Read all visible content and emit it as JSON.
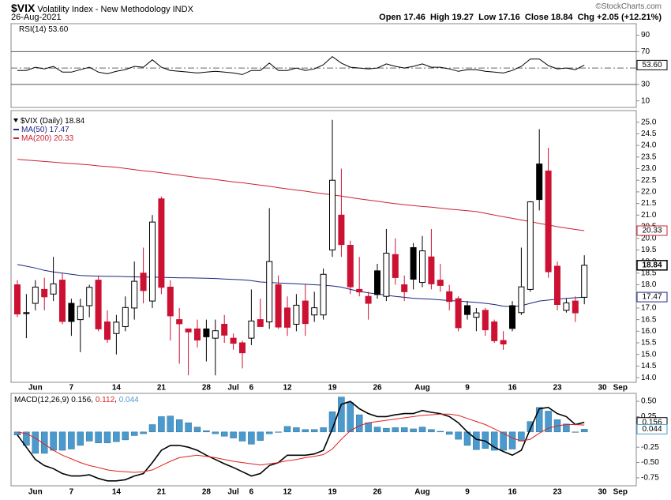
{
  "header": {
    "symbol": "$VIX",
    "name": "Volatility Index - New Methodology INDX",
    "date": "26-Aug-2021",
    "open_label": "Open",
    "high_label": "High",
    "low_label": "Low",
    "close_label": "Close",
    "change_label": "Chg",
    "change": "+2.05",
    "change_pct": "(+12.21%)",
    "credit": "©StockCharts.com"
  },
  "chart_data": [
    {
      "type": "line",
      "series": [
        {
          "name": "RSI(14)",
          "color": "#000000",
          "values": [
            47,
            47,
            51,
            49,
            52,
            45,
            45,
            48,
            51,
            45,
            43,
            46,
            48,
            52,
            51,
            60,
            51,
            47,
            46,
            45,
            44,
            45,
            46,
            45,
            44,
            42,
            47,
            47,
            56,
            47,
            47,
            50,
            47,
            49,
            54,
            64,
            56,
            51,
            50,
            49,
            50,
            55,
            52,
            50,
            52,
            55,
            51,
            51,
            49,
            46,
            48,
            48,
            46,
            45,
            44,
            47,
            52,
            61,
            61,
            53,
            49,
            50,
            48,
            53.6,
            null,
            null,
            null,
            null
          ]
        }
      ],
      "value_label": "53.60",
      "ylim": [
        2,
        104
      ],
      "yticks": [
        10,
        30,
        70,
        90
      ],
      "levels": [
        {
          "value": 70,
          "style": "solid"
        },
        {
          "value": 50,
          "style": "dashed"
        },
        {
          "value": 30,
          "style": "solid"
        }
      ]
    },
    {
      "type": "candlestick",
      "series_name": "$VIX (Daily)",
      "up_color": "#000000",
      "down_color": "#cc1133",
      "categories": [
        null,
        null,
        "Jun",
        null,
        null,
        null,
        "7",
        null,
        null,
        null,
        null,
        "14",
        null,
        null,
        null,
        null,
        "21",
        null,
        null,
        null,
        null,
        "28",
        null,
        null,
        "Jul",
        null,
        "6",
        null,
        null,
        null,
        "12",
        null,
        null,
        null,
        null,
        "19",
        null,
        null,
        null,
        null,
        "26",
        null,
        null,
        null,
        null,
        "Aug",
        null,
        null,
        null,
        null,
        "9",
        null,
        null,
        null,
        null,
        "16",
        null,
        null,
        null,
        null,
        "23",
        null,
        null,
        null,
        null,
        "30",
        null,
        "Sep"
      ],
      "open": [
        18.0,
        16.8,
        17.2,
        17.8,
        17.6,
        18.2,
        17.2,
        16.5,
        17.1,
        18.2,
        16.4,
        15.9,
        16.2,
        17.0,
        18.5,
        17.3,
        21.7,
        17.9,
        16.5,
        16.1,
        16.1,
        16.1,
        15.7,
        16.3,
        15.7,
        15.5,
        15.7,
        16.5,
        16.4,
        18.0,
        17.0,
        16.3,
        17.3,
        16.7,
        16.7,
        19.5,
        21.0,
        19.7,
        17.8,
        17.5,
        18.6,
        17.5,
        19.3,
        18.0,
        19.6,
        18.1,
        19.2,
        18.2,
        17.7,
        17.4,
        17.1,
        16.6,
        16.9,
        16.4,
        15.6,
        17.1,
        16.8,
        17.8,
        23.2,
        22.9,
        18.8,
        16.9,
        17.3,
        17.46,
        null,
        null,
        null,
        null
      ],
      "high": [
        18.2,
        17.6,
        18.2,
        18.3,
        19.2,
        18.5,
        17.4,
        17.4,
        18.0,
        18.4,
        16.9,
        16.7,
        17.5,
        19.0,
        19.6,
        21.0,
        21.8,
        18.2,
        17.0,
        16.1,
        16.5,
        16.5,
        16.5,
        16.7,
        15.9,
        15.6,
        17.8,
        17.4,
        21.3,
        18.4,
        17.5,
        17.6,
        18.0,
        17.7,
        18.7,
        25.1,
        23.0,
        19.9,
        19.2,
        17.7,
        18.9,
        20.4,
        20.0,
        18.4,
        19.8,
        20.1,
        20.4,
        18.9,
        18.0,
        17.5,
        17.3,
        17.0,
        17.0,
        16.5,
        16.0,
        17.3,
        19.6,
        21.6,
        24.7,
        23.9,
        19.0,
        17.4,
        17.5,
        19.27,
        null,
        null,
        null,
        null
      ],
      "low": [
        16.6,
        15.7,
        16.9,
        16.9,
        17.3,
        16.3,
        15.8,
        15.1,
        16.6,
        16.0,
        15.5,
        15.0,
        16.0,
        16.5,
        17.2,
        17.0,
        17.6,
        15.6,
        14.6,
        14.1,
        15.3,
        14.7,
        14.1,
        15.5,
        15.2,
        14.4,
        15.4,
        16.2,
        16.1,
        16.1,
        15.8,
        16.0,
        15.8,
        16.4,
        16.5,
        19.2,
        19.2,
        17.6,
        17.5,
        16.5,
        17.4,
        17.3,
        18.0,
        17.3,
        17.8,
        17.9,
        17.8,
        17.7,
        16.9,
        16.0,
        16.5,
        16.0,
        15.8,
        15.5,
        15.2,
        16.0,
        16.7,
        17.7,
        21.2,
        18.3,
        16.9,
        16.8,
        16.4,
        17.16,
        null,
        null,
        null,
        null
      ],
      "close": [
        16.74,
        16.76,
        17.9,
        17.48,
        18.04,
        16.42,
        16.42,
        17.07,
        17.89,
        16.1,
        15.65,
        16.39,
        17.02,
        18.15,
        17.75,
        20.7,
        17.89,
        16.66,
        16.32,
        15.97,
        15.62,
        15.76,
        16.02,
        15.83,
        15.48,
        15.07,
        16.44,
        16.2,
        19.0,
        16.18,
        16.17,
        17.12,
        16.33,
        17.01,
        18.45,
        22.5,
        19.73,
        17.91,
        17.69,
        17.2,
        17.58,
        19.36,
        18.31,
        17.7,
        18.24,
        19.46,
        18.04,
        17.97,
        17.28,
        16.15,
        16.72,
        16.79,
        16.06,
        15.59,
        15.45,
        16.12,
        17.91,
        21.57,
        21.67,
        18.56,
        17.15,
        17.22,
        16.79,
        18.84,
        null,
        null,
        null,
        null
      ],
      "overlays": [
        {
          "name": "MA(50)",
          "color": "#1c2680",
          "values": [
            18.87,
            18.8,
            18.72,
            18.62,
            18.55,
            18.5,
            18.45,
            18.4,
            18.38,
            18.37,
            18.36,
            18.36,
            18.35,
            18.34,
            18.33,
            18.33,
            18.32,
            18.31,
            18.3,
            18.3,
            18.29,
            18.28,
            18.27,
            18.25,
            18.23,
            18.21,
            18.18,
            18.12,
            18.1,
            18.08,
            18.06,
            18.04,
            18.02,
            18.0,
            17.98,
            17.95,
            17.9,
            17.8,
            17.72,
            17.65,
            17.6,
            17.55,
            17.5,
            17.46,
            17.42,
            17.4,
            17.38,
            17.35,
            17.32,
            17.3,
            17.27,
            17.24,
            17.2,
            17.15,
            17.08,
            17.06,
            17.1,
            17.2,
            17.3,
            17.34,
            17.38,
            17.42,
            17.44,
            17.47,
            null,
            null,
            null,
            null
          ]
        },
        {
          "name": "MA(200)",
          "color": "#cc2233",
          "values": [
            23.4,
            23.37,
            23.34,
            23.31,
            23.28,
            23.25,
            23.22,
            23.19,
            23.16,
            23.12,
            23.09,
            23.06,
            23.01,
            22.96,
            22.91,
            22.87,
            22.82,
            22.77,
            22.72,
            22.67,
            22.62,
            22.58,
            22.53,
            22.48,
            22.43,
            22.39,
            22.34,
            22.29,
            22.24,
            22.18,
            22.13,
            22.08,
            22.03,
            21.97,
            21.92,
            21.87,
            21.82,
            21.76,
            21.7,
            21.65,
            21.6,
            21.54,
            21.49,
            21.45,
            21.41,
            21.37,
            21.34,
            21.3,
            21.26,
            21.22,
            21.19,
            21.15,
            21.08,
            21.0,
            20.93,
            20.86,
            20.79,
            20.72,
            20.64,
            20.58,
            20.5,
            20.44,
            20.38,
            20.33,
            null,
            null,
            null,
            null
          ]
        }
      ],
      "ylim": [
        13.8,
        25.5
      ],
      "yticks": [
        {
          "value": 14,
          "label": "14.0"
        },
        14.5,
        {
          "value": 15,
          "label": "15.0"
        },
        15.5,
        {
          "value": 16,
          "label": "16.0"
        },
        16.5,
        {
          "value": 17,
          "label": "17.0"
        },
        17.5,
        {
          "value": 18,
          "label": "18.0"
        },
        18.5,
        {
          "value": 19,
          "label": "19.0"
        },
        19.5,
        {
          "value": 20,
          "label": "20.0"
        },
        20.5,
        {
          "value": 21,
          "label": "21.0"
        },
        21.5,
        {
          "value": 22,
          "label": "22.0"
        },
        22.5,
        {
          "value": 23,
          "label": "23.0"
        },
        23.5,
        {
          "value": 24,
          "label": "24.0"
        },
        24.5,
        {
          "value": 25,
          "label": "25.0"
        }
      ]
    },
    {
      "type": "macd",
      "title": "MACD(12,26,9)",
      "series": [
        {
          "style": "line",
          "color": "#000000",
          "values": [
            -0.05,
            -0.25,
            -0.45,
            -0.55,
            -0.6,
            -0.68,
            -0.72,
            -0.72,
            -0.7,
            -0.76,
            -0.8,
            -0.8,
            -0.78,
            -0.72,
            -0.68,
            -0.5,
            -0.3,
            -0.22,
            -0.22,
            -0.25,
            -0.3,
            -0.38,
            -0.45,
            -0.52,
            -0.58,
            -0.65,
            -0.72,
            -0.68,
            -0.55,
            -0.5,
            -0.38,
            -0.38,
            -0.38,
            -0.36,
            -0.3,
            0.05,
            0.45,
            0.5,
            0.38,
            0.3,
            0.25,
            0.25,
            0.28,
            0.3,
            0.3,
            0.35,
            0.32,
            0.3,
            0.25,
            0.15,
            0.0,
            -0.12,
            -0.15,
            -0.25,
            -0.32,
            -0.38,
            -0.3,
            0.05,
            0.38,
            0.4,
            0.3,
            0.25,
            0.12,
            0.156,
            null,
            null,
            null,
            null
          ]
        },
        {
          "style": "line",
          "color": "#dd2222",
          "values": [
            0.0,
            -0.03,
            -0.1,
            -0.2,
            -0.3,
            -0.38,
            -0.44,
            -0.5,
            -0.55,
            -0.58,
            -0.62,
            -0.64,
            -0.65,
            -0.66,
            -0.65,
            -0.62,
            -0.55,
            -0.48,
            -0.42,
            -0.4,
            -0.38,
            -0.4,
            -0.42,
            -0.45,
            -0.48,
            -0.5,
            -0.52,
            -0.54,
            -0.52,
            -0.5,
            -0.47,
            -0.45,
            -0.42,
            -0.4,
            -0.37,
            -0.28,
            -0.12,
            0.02,
            0.1,
            0.15,
            0.17,
            0.19,
            0.21,
            0.23,
            0.25,
            0.27,
            0.28,
            0.29,
            0.29,
            0.27,
            0.22,
            0.17,
            0.12,
            0.05,
            -0.02,
            -0.1,
            -0.15,
            -0.12,
            -0.02,
            0.06,
            0.1,
            0.12,
            0.12,
            0.112,
            null,
            null,
            null,
            null
          ]
        },
        {
          "style": "histogram",
          "color": "#4a9acd",
          "values": [
            -0.05,
            -0.22,
            -0.35,
            -0.35,
            -0.3,
            -0.3,
            -0.28,
            -0.22,
            -0.15,
            -0.18,
            -0.18,
            -0.16,
            -0.13,
            -0.06,
            -0.03,
            0.12,
            0.25,
            0.26,
            0.2,
            0.15,
            0.08,
            0.02,
            -0.03,
            -0.07,
            -0.1,
            -0.15,
            -0.2,
            -0.14,
            -0.03,
            0.0,
            0.09,
            0.07,
            0.04,
            0.04,
            0.07,
            0.33,
            0.57,
            0.48,
            0.28,
            0.15,
            0.08,
            0.06,
            0.07,
            0.07,
            0.05,
            0.08,
            0.04,
            0.01,
            -0.04,
            -0.12,
            -0.22,
            -0.29,
            -0.27,
            -0.3,
            -0.3,
            -0.28,
            -0.15,
            0.17,
            0.4,
            0.34,
            0.2,
            0.13,
            0.0,
            0.044,
            null,
            null,
            null,
            null
          ]
        }
      ],
      "ylim": [
        -0.88,
        0.63
      ],
      "yticks": [
        {
          "value": 0.5,
          "label": "0.50"
        },
        0.25,
        -0.25,
        {
          "value": -0.5,
          "label": "-0.50"
        },
        -0.75
      ]
    }
  ]
}
